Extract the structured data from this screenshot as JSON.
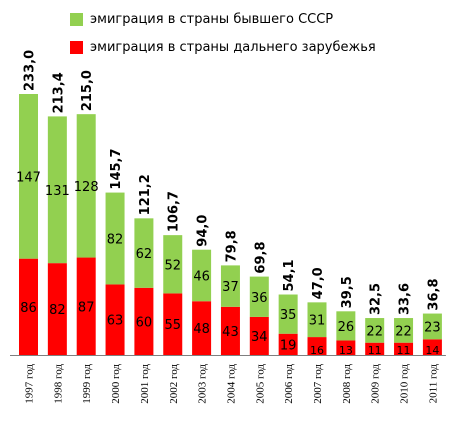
{
  "legend": {
    "cis_label": "эмиграция в страны бывшего СССР",
    "far_label": "эмиграция в страны дальнего зарубежья"
  },
  "colors": {
    "cis": "#92d050",
    "far": "#ff0000"
  },
  "chart_data": {
    "type": "bar",
    "stacked": true,
    "categories": [
      "1997 год",
      "1998 год",
      "1999 год",
      "2000 год",
      "2001 год",
      "2002 год",
      "2003 год",
      "2004 год",
      "2005 год",
      "2006 год",
      "2007 год",
      "2008 год",
      "2009 год",
      "2010 год",
      "2011 год"
    ],
    "series": [
      {
        "name": "эмиграция в страны дальнего зарубежья",
        "values": [
          86,
          82,
          87,
          63,
          60,
          55,
          48,
          43,
          34,
          19,
          16,
          13,
          11,
          11,
          14
        ]
      },
      {
        "name": "эмиграция в страны бывшего СССР",
        "values": [
          147,
          131,
          128,
          82,
          62,
          52,
          46,
          37,
          36,
          35,
          31,
          26,
          22,
          22,
          23
        ]
      }
    ],
    "totals": [
      "233,0",
      "213,4",
      "215,0",
      "145,7",
      "121,2",
      "106,7",
      "94,0",
      "79,8",
      "69,8",
      "54,1",
      "47,0",
      "39,5",
      "32,5",
      "33,6",
      "36,8"
    ],
    "segment_labels_far": [
      "86",
      "82",
      "87",
      "63",
      "60",
      "55",
      "48",
      "43",
      "34",
      "19",
      "16",
      "13",
      "11",
      "11",
      "14"
    ],
    "segment_labels_cis": [
      "147",
      "131",
      "128",
      "82",
      "62",
      "52",
      "46",
      "37",
      "36",
      "35",
      "31",
      "26",
      "22",
      "22",
      "23"
    ],
    "ylim": [
      0,
      233
    ],
    "legend_position": "top"
  }
}
